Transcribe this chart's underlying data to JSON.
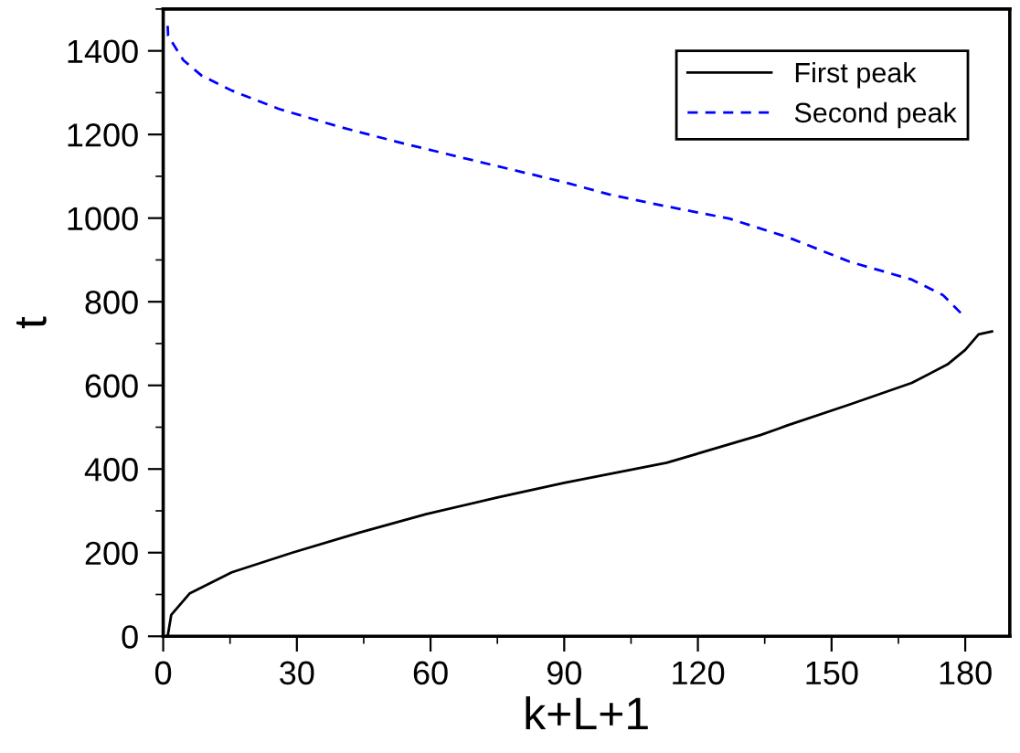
{
  "chart_data": {
    "type": "line",
    "xlabel": "k+L+1",
    "ylabel": "t",
    "xlim": [
      0,
      190
    ],
    "ylim": [
      0,
      1500
    ],
    "xticks": [
      0,
      30,
      60,
      90,
      120,
      150,
      180
    ],
    "yticks": [
      0,
      200,
      400,
      600,
      800,
      1000,
      1200,
      1400
    ],
    "grid": false,
    "legend": "top right",
    "series": [
      {
        "name": "First peak",
        "color": "#000000",
        "line_style": "solid",
        "x": [
          1,
          1.8,
          5.9,
          15.4,
          29,
          44,
          59,
          75,
          90,
          113,
          134,
          138,
          140,
          154,
          168,
          176,
          180,
          183,
          186
        ],
        "values": [
          0,
          51,
          102,
          153,
          200,
          248,
          292,
          332,
          367,
          415,
          481,
          496,
          504,
          554,
          606,
          650,
          685,
          722,
          729
        ]
      },
      {
        "name": "Second peak",
        "color": "#0000ff",
        "line_style": "dashed",
        "x": [
          1,
          1.1,
          4.5,
          8.6,
          15.4,
          26,
          40,
          53,
          70,
          90,
          100,
          113,
          127,
          140,
          154,
          168,
          175,
          179
        ],
        "values": [
          1460,
          1436,
          1378,
          1341,
          1305,
          1261,
          1217,
          1181,
          1137,
          1086,
          1057,
          1028,
          999,
          955,
          896,
          853,
          816,
          773
        ]
      }
    ]
  }
}
